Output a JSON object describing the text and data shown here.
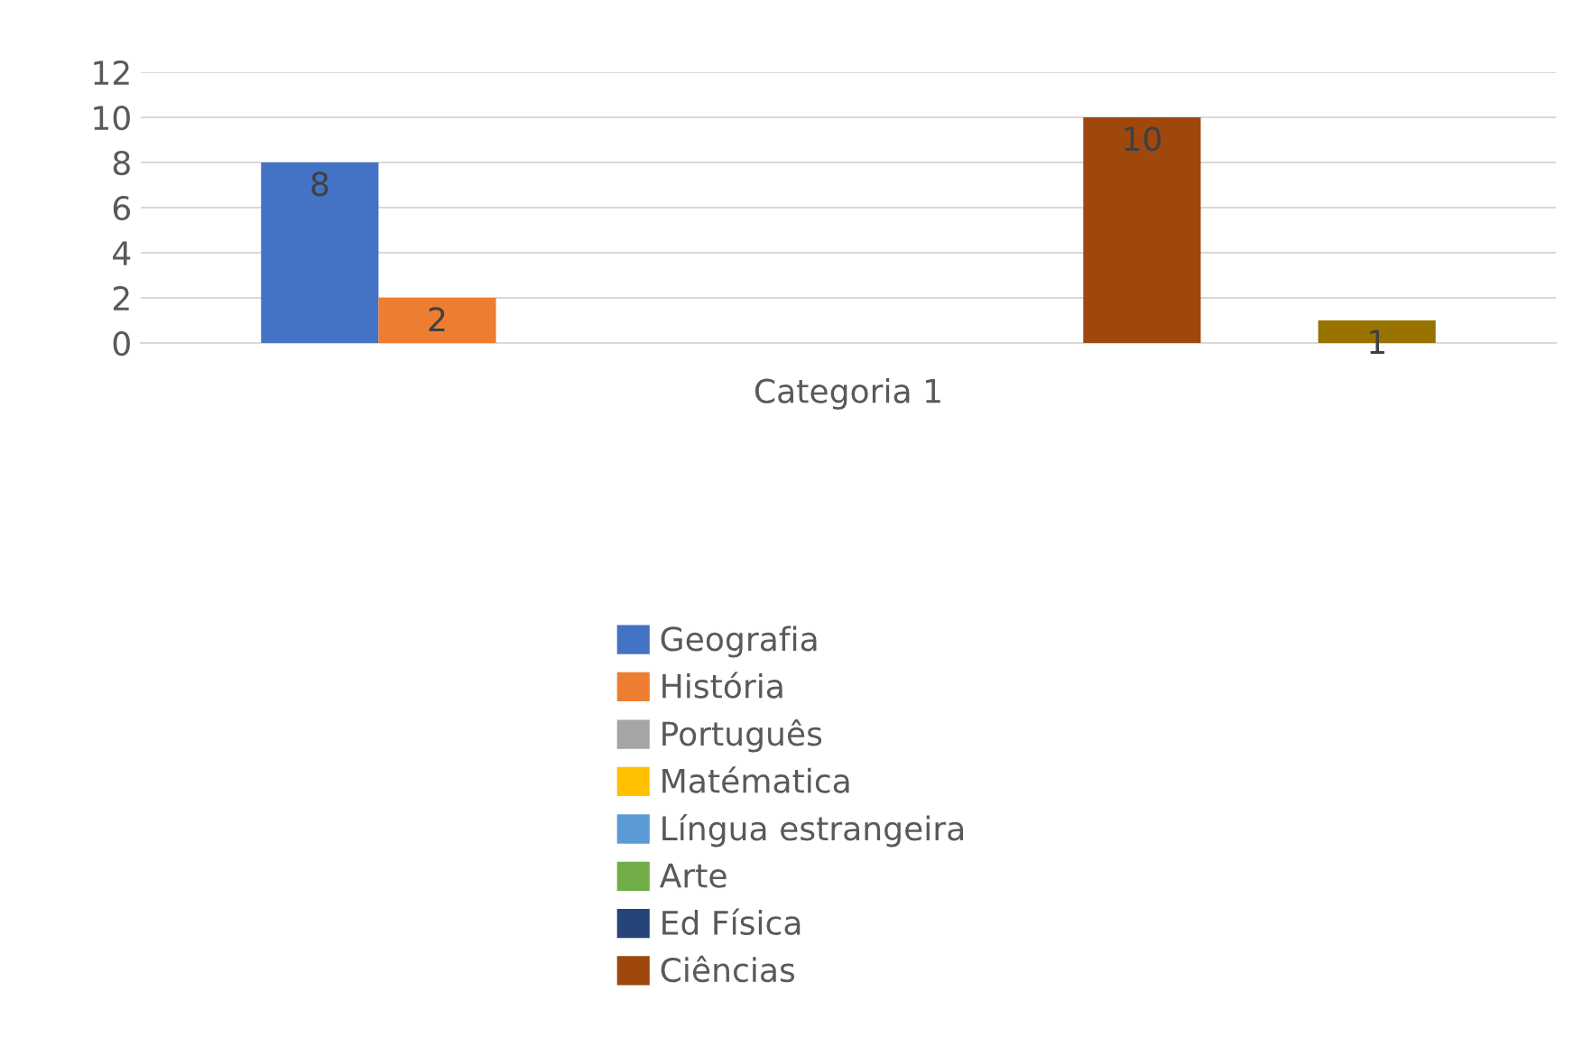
{
  "chart_data": {
    "type": "bar",
    "categories": [
      "Categoria 1"
    ],
    "series": [
      {
        "name": "Geografia",
        "color": "#4472c4",
        "values": [
          8
        ],
        "value_labels": [
          "8"
        ]
      },
      {
        "name": "História",
        "color": "#ed7d31",
        "values": [
          2
        ],
        "value_labels": [
          "2"
        ]
      },
      {
        "name": "Português",
        "color": "#a5a5a5",
        "values": [
          0
        ],
        "value_labels": [
          null
        ]
      },
      {
        "name": "Matématica",
        "color": "#ffc000",
        "values": [
          0
        ],
        "value_labels": [
          null
        ]
      },
      {
        "name": "Língua estrangeira",
        "color": "#5b9bd5",
        "values": [
          0
        ],
        "value_labels": [
          null
        ]
      },
      {
        "name": "Arte",
        "color": "#70ad47",
        "values": [
          0
        ],
        "value_labels": [
          null
        ]
      },
      {
        "name": "Ed Física",
        "color": "#264478",
        "values": [
          0
        ],
        "value_labels": [
          null
        ]
      },
      {
        "name": "Ciências",
        "color": "#9e480e",
        "values": [
          10
        ],
        "value_labels": [
          "10"
        ]
      },
      {
        "color": "#636363",
        "values": [
          0
        ],
        "value_labels": [
          null
        ]
      },
      {
        "color": "#997300",
        "values": [
          1
        ],
        "value_labels": [
          "1"
        ]
      }
    ],
    "ylim": [
      0,
      12
    ],
    "yticks": [
      0,
      2,
      4,
      6,
      8,
      10,
      12
    ],
    "grid": "y",
    "legend": "bottom"
  }
}
